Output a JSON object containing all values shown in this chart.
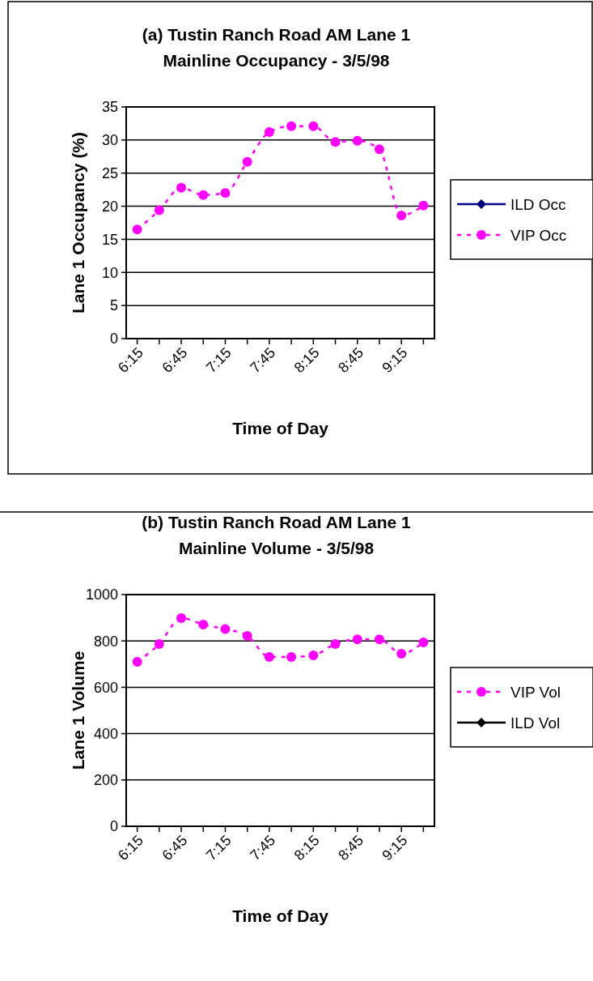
{
  "chart_data": [
    {
      "type": "line",
      "title": "(a) Tustin Ranch Road AM Lane 1\nMainline Occupancy - 3/5/98",
      "xlabel": "Time of Day",
      "ylabel": "Lane 1 Occupancy (%)",
      "categories": [
        "6:15",
        null,
        "6:45",
        null,
        "7:15",
        null,
        "7:45",
        null,
        "8:15",
        null,
        "8:45",
        null,
        "9:15",
        null
      ],
      "series": [
        {
          "name": "ILD Occ",
          "color": "#000080",
          "marker": "diamond",
          "line_style": "solid",
          "values": [
            null,
            null,
            null,
            null,
            null,
            null,
            null,
            null,
            null,
            null,
            null,
            null,
            null,
            null
          ]
        },
        {
          "name": "VIP Occ",
          "color": "#ff00ff",
          "marker": "circle",
          "line_style": "dashed",
          "values": [
            16.5,
            19.4,
            22.8,
            21.7,
            22.0,
            26.7,
            31.2,
            32.1,
            32.1,
            29.7,
            29.9,
            28.6,
            18.6,
            20.1
          ]
        }
      ],
      "ylim": [
        0,
        35
      ],
      "yticks": [
        0,
        5,
        10,
        15,
        20,
        25,
        30,
        35
      ],
      "grid": "y",
      "legend": "right"
    },
    {
      "type": "line",
      "title": "(b) Tustin Ranch Road AM Lane 1\nMainline Volume - 3/5/98",
      "xlabel": "Time of Day",
      "ylabel": "Lane 1 Volume",
      "categories": [
        "6:15",
        null,
        "6:45",
        null,
        "7:15",
        null,
        "7:45",
        null,
        "8:15",
        null,
        "8:45",
        null,
        "9:15",
        null
      ],
      "series": [
        {
          "name": "VIP Vol",
          "color": "#ff00ff",
          "marker": "circle",
          "line_style": "dashed",
          "values": [
            710,
            787,
            899,
            871,
            851,
            822,
            731,
            731,
            738,
            787,
            807,
            807,
            745,
            794
          ]
        },
        {
          "name": "ILD Vol",
          "color": "#000000",
          "marker": "diamond",
          "line_style": "solid",
          "values": [
            null,
            null,
            null,
            null,
            null,
            null,
            null,
            null,
            null,
            null,
            null,
            null,
            null,
            null
          ]
        }
      ],
      "ylim": [
        0,
        1000
      ],
      "yticks": [
        0,
        200,
        400,
        600,
        800,
        1000
      ],
      "grid": "y",
      "legend": "right"
    }
  ]
}
